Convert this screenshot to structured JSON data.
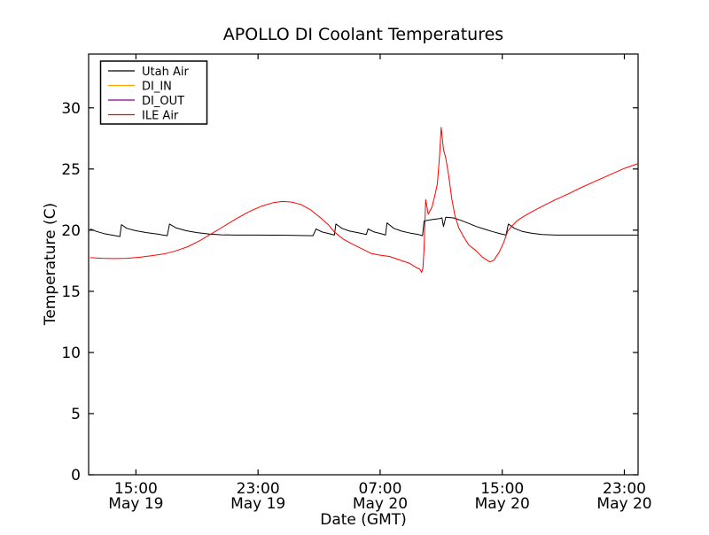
{
  "figure": {
    "background_color": "#ffffff",
    "text_color": "#000000"
  },
  "chart_data": {
    "type": "line",
    "title": "APOLLO DI Coolant Temperatures",
    "xlabel": "Date (GMT)",
    "ylabel": "Temperature (C)",
    "grid": false,
    "legend_position": "upper left",
    "x_axis_note": "x values are hours after May 19 12:00 GMT",
    "xlim_hours": [
      -0.1,
      35.9
    ],
    "ylim": [
      0,
      34.4
    ],
    "yticks": [
      0,
      5,
      10,
      15,
      20,
      25,
      30
    ],
    "xticks": [
      {
        "t": 3,
        "time": "15:00",
        "date": "May 19"
      },
      {
        "t": 11,
        "time": "23:00",
        "date": "May 19"
      },
      {
        "t": 19,
        "time": "07:00",
        "date": "May 20"
      },
      {
        "t": 27,
        "time": "15:00",
        "date": "May 20"
      },
      {
        "t": 35,
        "time": "23:00",
        "date": "May 20"
      }
    ],
    "series": [
      {
        "name": "Utah Air",
        "color": "#000000",
        "points": [
          [
            0,
            20.1
          ],
          [
            0.4,
            19.9
          ],
          [
            0.9,
            19.72
          ],
          [
            1.5,
            19.58
          ],
          [
            1.95,
            19.48
          ],
          [
            2.05,
            20.45
          ],
          [
            2.4,
            20.15
          ],
          [
            3,
            19.95
          ],
          [
            3.7,
            19.8
          ],
          [
            4.4,
            19.68
          ],
          [
            5.05,
            19.55
          ],
          [
            5.2,
            20.5
          ],
          [
            5.6,
            20.2
          ],
          [
            6.3,
            19.95
          ],
          [
            7,
            19.8
          ],
          [
            7.8,
            19.68
          ],
          [
            8.6,
            19.62
          ],
          [
            9.5,
            19.6
          ],
          [
            11,
            19.6
          ],
          [
            13,
            19.58
          ],
          [
            14.6,
            19.55
          ],
          [
            14.8,
            20.1
          ],
          [
            15.2,
            19.85
          ],
          [
            15.7,
            19.7
          ],
          [
            16,
            19.6
          ],
          [
            16.1,
            20.5
          ],
          [
            16.5,
            20.15
          ],
          [
            17,
            19.92
          ],
          [
            17.6,
            19.78
          ],
          [
            18.1,
            19.65
          ],
          [
            18.2,
            20.1
          ],
          [
            18.6,
            19.85
          ],
          [
            19.1,
            19.7
          ],
          [
            19.35,
            19.6
          ],
          [
            19.45,
            20.6
          ],
          [
            19.9,
            20.15
          ],
          [
            20.4,
            19.92
          ],
          [
            21,
            19.75
          ],
          [
            21.5,
            19.65
          ],
          [
            21.78,
            19.55
          ],
          [
            21.88,
            20.75
          ],
          [
            22.3,
            20.85
          ],
          [
            22.9,
            20.95
          ],
          [
            23.05,
            21.0
          ],
          [
            23.15,
            20.3
          ],
          [
            23.3,
            21.05
          ],
          [
            23.8,
            21.0
          ],
          [
            24.3,
            20.8
          ],
          [
            24.8,
            20.55
          ],
          [
            25.3,
            20.3
          ],
          [
            25.8,
            20.1
          ],
          [
            26.3,
            19.9
          ],
          [
            26.9,
            19.7
          ],
          [
            27.25,
            19.6
          ],
          [
            27.4,
            20.5
          ],
          [
            27.8,
            20.15
          ],
          [
            28.3,
            19.9
          ],
          [
            28.9,
            19.75
          ],
          [
            29.6,
            19.65
          ],
          [
            30.5,
            19.6
          ],
          [
            32,
            19.6
          ],
          [
            34,
            19.6
          ],
          [
            35.9,
            19.6
          ]
        ]
      },
      {
        "name": "DI_IN",
        "color": "#ffa500",
        "points": []
      },
      {
        "name": "DI_OUT",
        "color": "#800080",
        "points": []
      },
      {
        "name": "ILE Air",
        "color": "#ff0000",
        "points": [
          [
            0,
            17.75
          ],
          [
            0.8,
            17.7
          ],
          [
            1.6,
            17.68
          ],
          [
            2.4,
            17.7
          ],
          [
            3.2,
            17.78
          ],
          [
            4,
            17.9
          ],
          [
            4.8,
            18.05
          ],
          [
            5.6,
            18.3
          ],
          [
            6.4,
            18.65
          ],
          [
            7.2,
            19.15
          ],
          [
            8,
            19.75
          ],
          [
            8.8,
            20.35
          ],
          [
            9.6,
            20.95
          ],
          [
            10.4,
            21.5
          ],
          [
            11.2,
            21.95
          ],
          [
            12,
            22.25
          ],
          [
            12.6,
            22.35
          ],
          [
            13.2,
            22.3
          ],
          [
            13.8,
            22.1
          ],
          [
            14.4,
            21.7
          ],
          [
            15,
            21.1
          ],
          [
            15.6,
            20.45
          ],
          [
            16,
            19.85
          ],
          [
            16.6,
            19.25
          ],
          [
            17.2,
            18.85
          ],
          [
            18,
            18.35
          ],
          [
            18.4,
            18.1
          ],
          [
            19,
            17.95
          ],
          [
            19.6,
            17.85
          ],
          [
            20.2,
            17.6
          ],
          [
            20.9,
            17.3
          ],
          [
            21.3,
            17.0
          ],
          [
            21.6,
            16.8
          ],
          [
            21.72,
            16.55
          ],
          [
            21.8,
            16.9
          ],
          [
            21.88,
            18.5
          ],
          [
            21.98,
            22.5
          ],
          [
            22.15,
            21.3
          ],
          [
            22.4,
            21.9
          ],
          [
            22.6,
            22.9
          ],
          [
            22.75,
            23.8
          ],
          [
            22.9,
            26.2
          ],
          [
            23.0,
            28.4
          ],
          [
            23.15,
            26.6
          ],
          [
            23.3,
            25.9
          ],
          [
            23.5,
            24.4
          ],
          [
            23.7,
            22.5
          ],
          [
            23.9,
            21.2
          ],
          [
            24.15,
            20.2
          ],
          [
            24.45,
            19.5
          ],
          [
            24.8,
            18.8
          ],
          [
            25.3,
            18.3
          ],
          [
            25.7,
            17.8
          ],
          [
            26.0,
            17.55
          ],
          [
            26.2,
            17.4
          ],
          [
            26.45,
            17.55
          ],
          [
            26.8,
            18.2
          ],
          [
            27.1,
            19.0
          ],
          [
            27.35,
            19.9
          ],
          [
            27.6,
            20.3
          ],
          [
            28,
            20.8
          ],
          [
            28.5,
            21.2
          ],
          [
            29,
            21.55
          ],
          [
            29.7,
            22.0
          ],
          [
            30.5,
            22.5
          ],
          [
            31.3,
            22.95
          ],
          [
            32.2,
            23.5
          ],
          [
            33.1,
            24.0
          ],
          [
            34,
            24.5
          ],
          [
            35,
            25.05
          ],
          [
            35.9,
            25.45
          ]
        ]
      }
    ]
  }
}
